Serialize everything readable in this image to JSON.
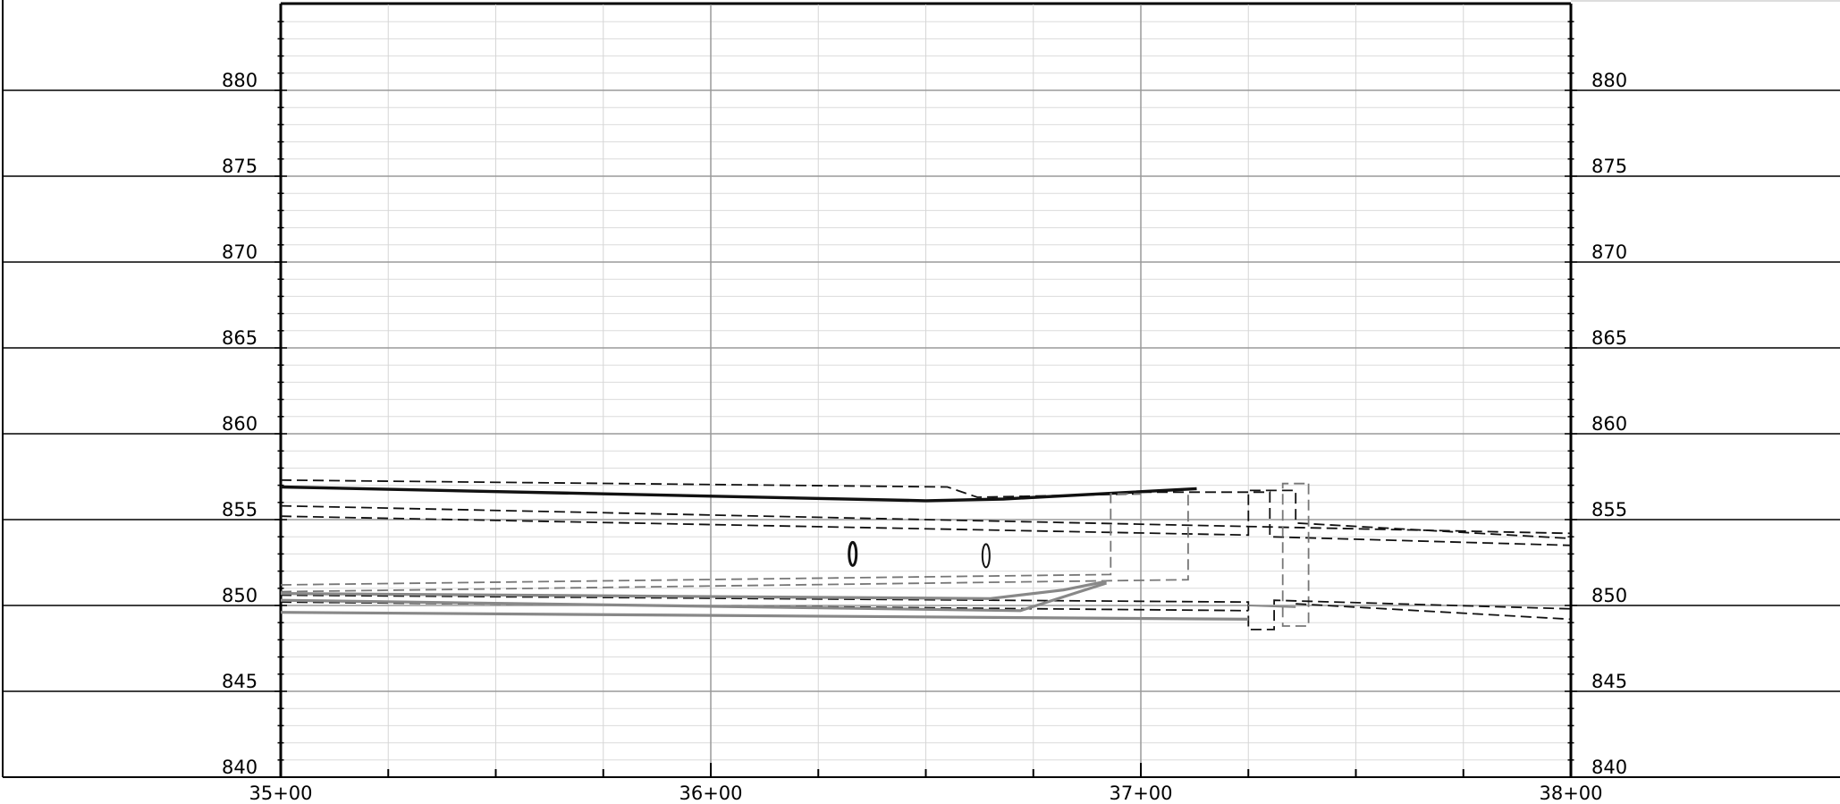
{
  "chart_data": {
    "type": "line",
    "title": "",
    "xlabel": "",
    "ylabel": "",
    "xlim": [
      3500,
      3800
    ],
    "ylim": [
      840,
      885
    ],
    "x_tick_labels": [
      {
        "value": 3500,
        "label": "35+00"
      },
      {
        "value": 3600,
        "label": "36+00"
      },
      {
        "value": 3700,
        "label": "37+00"
      },
      {
        "value": 3800,
        "label": "38+00"
      }
    ],
    "y_tick_labels": [
      {
        "value": 840,
        "label": "840"
      },
      {
        "value": 845,
        "label": "845"
      },
      {
        "value": 850,
        "label": "850"
      },
      {
        "value": 855,
        "label": "855"
      },
      {
        "value": 860,
        "label": "860"
      },
      {
        "value": 865,
        "label": "865"
      },
      {
        "value": 870,
        "label": "870"
      },
      {
        "value": 875,
        "label": "875"
      },
      {
        "value": 880,
        "label": "880"
      }
    ],
    "grid": true,
    "series": [
      {
        "style": "solid-heavy",
        "color": "#111111",
        "points": [
          [
            3500,
            856.9
          ],
          [
            3650,
            856.1
          ],
          [
            3668,
            856.2
          ],
          [
            3713,
            856.8
          ]
        ]
      },
      {
        "style": "dashed",
        "color": "#111111",
        "points": [
          [
            3500,
            857.3
          ],
          [
            3655,
            856.9
          ],
          [
            3662,
            856.3
          ],
          [
            3700,
            856.5
          ]
        ]
      },
      {
        "style": "dashed",
        "color": "#111111",
        "points": [
          [
            3700,
            856.6
          ],
          [
            3730,
            856.6
          ],
          [
            3730,
            854.0
          ],
          [
            3800,
            853.5
          ]
        ]
      },
      {
        "style": "dashed",
        "color": "#111111",
        "points": [
          [
            3500,
            855.8
          ],
          [
            3800,
            854.2
          ]
        ]
      },
      {
        "style": "dashed",
        "color": "#111111",
        "points": [
          [
            3500,
            855.2
          ],
          [
            3725,
            854.1
          ],
          [
            3725,
            856.7
          ],
          [
            3736,
            856.7
          ],
          [
            3736,
            854.8
          ],
          [
            3800,
            853.9
          ]
        ]
      },
      {
        "style": "dashed",
        "color": "#777777",
        "points": [
          [
            3500,
            851.2
          ],
          [
            3693,
            851.8
          ],
          [
            3693,
            856.5
          ],
          [
            3700,
            856.5
          ]
        ]
      },
      {
        "style": "dashed",
        "color": "#777777",
        "points": [
          [
            3500,
            850.8
          ],
          [
            3711,
            851.5
          ],
          [
            3711,
            856.6
          ]
        ]
      },
      {
        "style": "dashed",
        "color": "#777777",
        "points": [
          [
            3739,
            857.1
          ],
          [
            3739,
            848.8
          ],
          [
            3733,
            848.8
          ],
          [
            3733,
            857.1
          ],
          [
            3739,
            857.1
          ]
        ]
      },
      {
        "style": "dashed",
        "color": "#111111",
        "points": [
          [
            3500,
            850.6
          ],
          [
            3725,
            850.2
          ],
          [
            3725,
            849.7
          ]
        ]
      },
      {
        "style": "dashed",
        "color": "#111111",
        "points": [
          [
            3500,
            850.2
          ],
          [
            3725,
            849.7
          ]
        ]
      },
      {
        "style": "dashed",
        "color": "#111111",
        "points": [
          [
            3725,
            849.4
          ],
          [
            3725,
            848.6
          ],
          [
            3731,
            848.6
          ],
          [
            3731,
            850.3
          ],
          [
            3800,
            849.8
          ]
        ]
      },
      {
        "style": "dashed",
        "color": "#111111",
        "points": [
          [
            3736,
            850.1
          ],
          [
            3800,
            849.2
          ]
        ]
      },
      {
        "style": "solid",
        "color": "#888888",
        "points": [
          [
            3500,
            850.7
          ],
          [
            3665,
            850.4
          ],
          [
            3682,
            850.9
          ],
          [
            3692,
            851.4
          ]
        ]
      },
      {
        "style": "solid",
        "color": "#888888",
        "points": [
          [
            3500,
            850.3
          ],
          [
            3672,
            849.7
          ],
          [
            3692,
            851.3
          ]
        ]
      },
      {
        "style": "solid",
        "color": "#888888",
        "points": [
          [
            3500,
            849.6
          ],
          [
            3725,
            849.2
          ]
        ]
      },
      {
        "style": "solid-thin",
        "color": "#888888",
        "points": [
          [
            3725,
            850.0
          ],
          [
            3736,
            849.9
          ]
        ]
      }
    ],
    "markers": [
      {
        "shape": "ellipse",
        "x": 3633,
        "y": 853.0
      },
      {
        "shape": "ellipse",
        "x": 3664,
        "y": 852.9
      }
    ]
  }
}
